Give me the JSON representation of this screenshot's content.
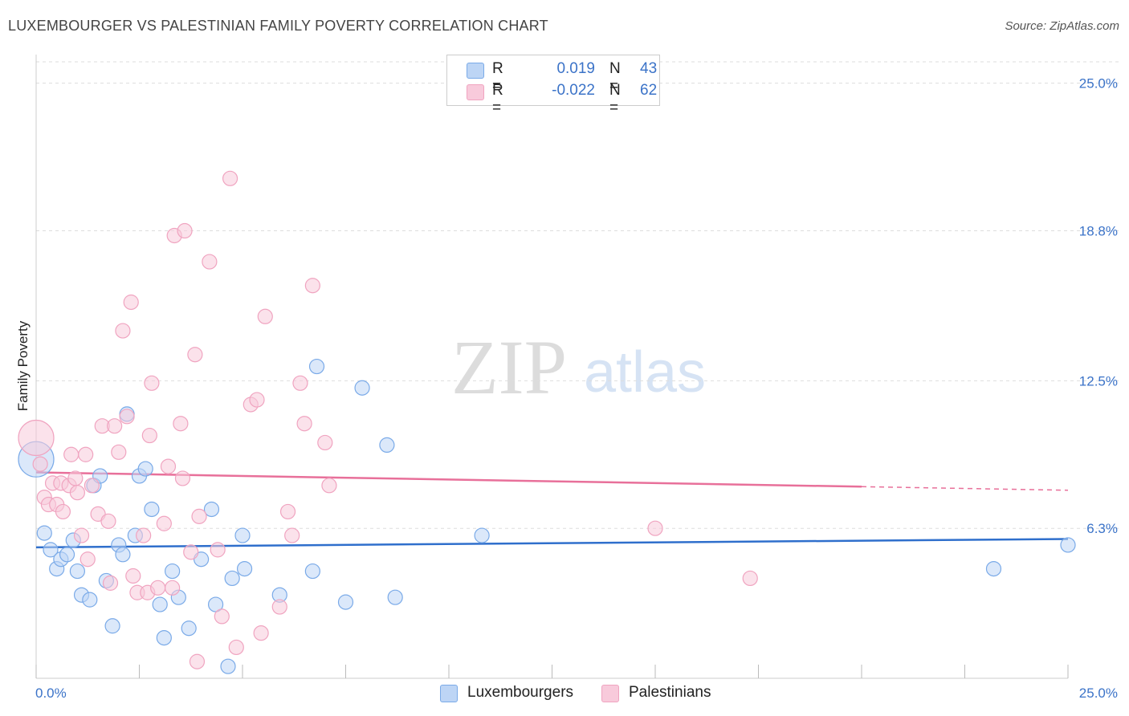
{
  "title": "LUXEMBOURGER VS PALESTINIAN FAMILY POVERTY CORRELATION CHART",
  "source": "Source: ZipAtlas.com",
  "watermark": {
    "zip": "ZIP",
    "atlas": "atlas"
  },
  "legend_top": {
    "r_label": "R =",
    "n_label": "N =",
    "rows": [
      {
        "r_value": "0.019",
        "n_value": "43"
      },
      {
        "r_value": "-0.022",
        "n_value": "62"
      }
    ]
  },
  "chart_data": {
    "type": "scatter",
    "title": "LUXEMBOURGER VS PALESTINIAN FAMILY POVERTY CORRELATION CHART",
    "xlabel": "",
    "ylabel": "Family Poverty",
    "xlim": [
      0,
      25
    ],
    "ylim": [
      0,
      25.9
    ],
    "x_tick_labels": [
      "0.0%",
      "25.0%"
    ],
    "y_ticks": [
      {
        "value": 6.3,
        "label": "6.3%"
      },
      {
        "value": 12.5,
        "label": "12.5%"
      },
      {
        "value": 18.8,
        "label": "18.8%"
      },
      {
        "value": 25.0,
        "label": "25.0%"
      }
    ],
    "grid": true,
    "series": [
      {
        "name": "Luxembourgers",
        "color": "#7aaae8",
        "fill": "#bdd5f5",
        "line_color": "#2f6fcc",
        "trend": {
          "x1": 0,
          "y1": 5.5,
          "x2": 25,
          "y2": 5.85
        },
        "points": [
          [
            0.0,
            9.2,
            22
          ],
          [
            0.2,
            6.1,
            9
          ],
          [
            0.35,
            5.4,
            9
          ],
          [
            0.5,
            4.6,
            9
          ],
          [
            0.6,
            5.0,
            9
          ],
          [
            0.75,
            5.2,
            9
          ],
          [
            0.9,
            5.8,
            9
          ],
          [
            1.0,
            4.5,
            9
          ],
          [
            1.1,
            3.5,
            9
          ],
          [
            1.3,
            3.3,
            9
          ],
          [
            1.4,
            8.1,
            9
          ],
          [
            1.55,
            8.5,
            9
          ],
          [
            1.7,
            4.1,
            9
          ],
          [
            1.85,
            2.2,
            9
          ],
          [
            2.0,
            5.6,
            9
          ],
          [
            2.1,
            5.2,
            9
          ],
          [
            2.2,
            11.1,
            9
          ],
          [
            2.4,
            6.0,
            9
          ],
          [
            2.5,
            8.5,
            9
          ],
          [
            2.65,
            8.8,
            9
          ],
          [
            2.8,
            7.1,
            9
          ],
          [
            3.0,
            3.1,
            9
          ],
          [
            3.1,
            1.7,
            9
          ],
          [
            3.3,
            4.5,
            9
          ],
          [
            3.45,
            3.4,
            9
          ],
          [
            3.7,
            2.1,
            9
          ],
          [
            4.0,
            5.0,
            9
          ],
          [
            4.25,
            7.1,
            9
          ],
          [
            4.35,
            3.1,
            9
          ],
          [
            4.65,
            0.5,
            9
          ],
          [
            4.75,
            4.2,
            9
          ],
          [
            5.0,
            6.0,
            9
          ],
          [
            5.05,
            4.6,
            9
          ],
          [
            5.9,
            3.5,
            9
          ],
          [
            6.7,
            4.5,
            9
          ],
          [
            6.8,
            13.1,
            9
          ],
          [
            7.5,
            3.2,
            9
          ],
          [
            7.9,
            12.2,
            9
          ],
          [
            8.5,
            9.8,
            9
          ],
          [
            8.7,
            3.4,
            9
          ],
          [
            10.8,
            6.0,
            9
          ],
          [
            23.2,
            4.6,
            9
          ],
          [
            25.0,
            5.6,
            9
          ]
        ]
      },
      {
        "name": "Palestinians",
        "color": "#f0a4c0",
        "fill": "#f8cadb",
        "line_color": "#e8709a",
        "trend": {
          "x1": 0,
          "y1": 8.65,
          "x2": 20,
          "y2": 8.05
        },
        "trend_dashed_to": {
          "x": 25,
          "y": 7.9
        },
        "points": [
          [
            0.0,
            10.1,
            22
          ],
          [
            0.1,
            9.0,
            9
          ],
          [
            0.2,
            7.6,
            9
          ],
          [
            0.3,
            7.3,
            9
          ],
          [
            0.4,
            8.2,
            9
          ],
          [
            0.5,
            7.3,
            9
          ],
          [
            0.6,
            8.2,
            9
          ],
          [
            0.65,
            7.0,
            9
          ],
          [
            0.8,
            8.1,
            9
          ],
          [
            0.85,
            9.4,
            9
          ],
          [
            0.95,
            8.4,
            9
          ],
          [
            1.0,
            7.8,
            9
          ],
          [
            1.1,
            6.0,
            9
          ],
          [
            1.2,
            9.4,
            9
          ],
          [
            1.25,
            5.0,
            9
          ],
          [
            1.35,
            8.1,
            9
          ],
          [
            1.5,
            6.9,
            9
          ],
          [
            1.6,
            10.6,
            9
          ],
          [
            1.75,
            6.6,
            9
          ],
          [
            1.8,
            4.0,
            9
          ],
          [
            1.9,
            10.6,
            9
          ],
          [
            2.0,
            9.5,
            9
          ],
          [
            2.1,
            14.6,
            9
          ],
          [
            2.2,
            11.0,
            9
          ],
          [
            2.3,
            15.8,
            9
          ],
          [
            2.35,
            4.3,
            9
          ],
          [
            2.45,
            3.6,
            9
          ],
          [
            2.6,
            6.0,
            9
          ],
          [
            2.7,
            3.6,
            9
          ],
          [
            2.75,
            10.2,
            9
          ],
          [
            2.8,
            12.4,
            9
          ],
          [
            2.95,
            3.8,
            9
          ],
          [
            3.1,
            6.5,
            9
          ],
          [
            3.2,
            8.9,
            9
          ],
          [
            3.3,
            3.8,
            9
          ],
          [
            3.35,
            18.6,
            9
          ],
          [
            3.5,
            10.7,
            9
          ],
          [
            3.55,
            8.4,
            9
          ],
          [
            3.6,
            18.8,
            9
          ],
          [
            3.75,
            5.3,
            9
          ],
          [
            3.85,
            13.6,
            9
          ],
          [
            3.9,
            0.7,
            9
          ],
          [
            3.95,
            6.8,
            9
          ],
          [
            4.2,
            17.5,
            9
          ],
          [
            4.4,
            5.4,
            9
          ],
          [
            4.5,
            2.6,
            9
          ],
          [
            4.7,
            21.0,
            9
          ],
          [
            4.85,
            1.3,
            9
          ],
          [
            5.2,
            11.5,
            9
          ],
          [
            5.35,
            11.7,
            9
          ],
          [
            5.45,
            1.9,
            9
          ],
          [
            5.55,
            15.2,
            9
          ],
          [
            5.9,
            3.0,
            9
          ],
          [
            6.1,
            7.0,
            9
          ],
          [
            6.2,
            6.0,
            9
          ],
          [
            6.4,
            12.4,
            9
          ],
          [
            6.5,
            10.7,
            9
          ],
          [
            6.7,
            16.5,
            9
          ],
          [
            7.0,
            9.9,
            9
          ],
          [
            7.1,
            8.1,
            9
          ],
          [
            15.0,
            6.3,
            9
          ],
          [
            17.3,
            4.2,
            9
          ]
        ]
      }
    ]
  },
  "bottom_legend": [
    "Luxembourgers",
    "Palestinians"
  ]
}
